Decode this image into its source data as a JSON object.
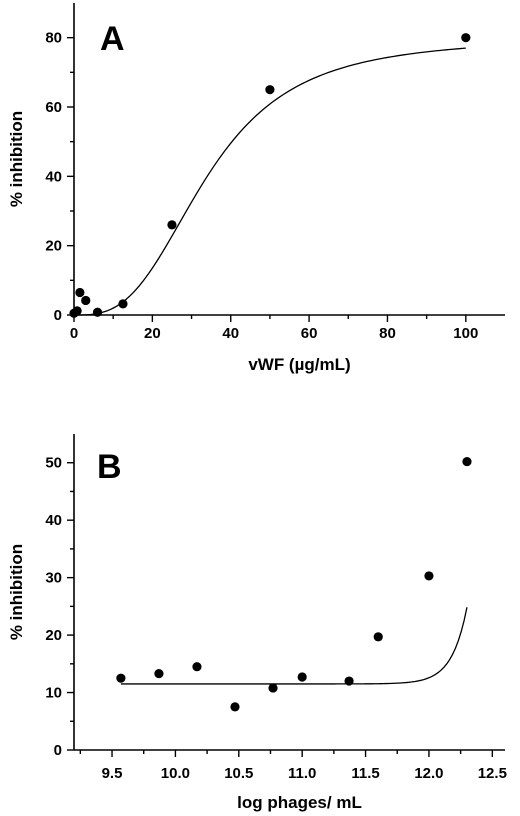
{
  "chart_data": [
    {
      "type": "scatter",
      "panel_label": "A",
      "xlabel": "vWF (µg/mL)",
      "ylabel": "% inhibition",
      "xlim": [
        0,
        110
      ],
      "ylim": [
        0,
        90
      ],
      "x_ticks": [
        0,
        20,
        40,
        60,
        80,
        100
      ],
      "y_ticks": [
        0,
        20,
        40,
        60,
        80
      ],
      "x_tick_labels": [
        "0",
        "20",
        "40",
        "60",
        "80",
        "100"
      ],
      "y_tick_labels": [
        "0",
        "20",
        "40",
        "60",
        "80"
      ],
      "grid": false,
      "series": [
        {
          "points": [
            {
              "x": 0,
              "y": 0.5
            },
            {
              "x": 0.8,
              "y": 1.2
            },
            {
              "x": 1.5,
              "y": 6.5
            },
            {
              "x": 3,
              "y": 4.2
            },
            {
              "x": 6,
              "y": 0.8
            },
            {
              "x": 12.5,
              "y": 3.2
            },
            {
              "x": 25,
              "y": 26
            },
            {
              "x": 50,
              "y": 65
            },
            {
              "x": 100,
              "y": 80
            }
          ],
          "fit_line": true
        }
      ]
    },
    {
      "type": "scatter",
      "panel_label": "B",
      "xlabel": "log  phages/ mL",
      "ylabel": "% inhibition",
      "xlim": [
        9.2,
        12.6
      ],
      "ylim": [
        0,
        55
      ],
      "x_ticks": [
        9.5,
        10.0,
        10.5,
        11.0,
        11.5,
        12.0,
        12.5
      ],
      "y_ticks": [
        0,
        10,
        20,
        30,
        40,
        50
      ],
      "x_tick_labels": [
        "9.5",
        "10.0",
        "10.5",
        "11.0",
        "11.5",
        "12.0",
        "12.5"
      ],
      "y_tick_labels": [
        "0",
        "10",
        "20",
        "30",
        "40",
        "50"
      ],
      "grid": false,
      "series": [
        {
          "points": [
            {
              "x": 9.57,
              "y": 12.5
            },
            {
              "x": 9.87,
              "y": 13.3
            },
            {
              "x": 10.17,
              "y": 14.5
            },
            {
              "x": 10.47,
              "y": 7.5
            },
            {
              "x": 10.77,
              "y": 10.8
            },
            {
              "x": 11.0,
              "y": 12.7
            },
            {
              "x": 11.37,
              "y": 12.0
            },
            {
              "x": 11.6,
              "y": 19.7
            },
            {
              "x": 12.0,
              "y": 30.3
            },
            {
              "x": 12.3,
              "y": 50.2
            }
          ],
          "fit_line": true
        }
      ]
    }
  ]
}
